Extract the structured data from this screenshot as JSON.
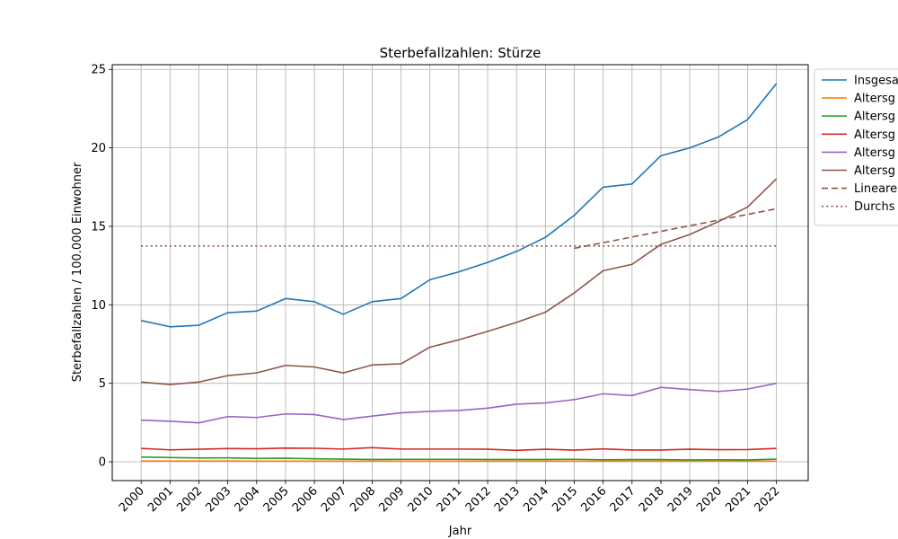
{
  "chart_data": {
    "type": "line",
    "title": "Sterbefallzahlen: Stürze",
    "xlabel": "Jahr",
    "ylabel": "Sterbefallzahlen / 100.000 Einwohner",
    "x": [
      2000,
      2001,
      2002,
      2003,
      2004,
      2005,
      2006,
      2007,
      2008,
      2009,
      2010,
      2011,
      2012,
      2013,
      2014,
      2015,
      2016,
      2017,
      2018,
      2019,
      2020,
      2021,
      2022
    ],
    "xlim": [
      1999.0,
      2023.1
    ],
    "ylim": [
      -1.2,
      25.3
    ],
    "yticks": [
      0,
      5,
      10,
      15,
      20,
      25
    ],
    "grid": true,
    "legend_position": "right-outside-top",
    "series": [
      {
        "name": "Insgesa",
        "color": "#1f77b4",
        "style": "solid",
        "values": [
          9.0,
          8.6,
          8.7,
          9.5,
          9.6,
          10.4,
          10.2,
          9.4,
          10.2,
          10.4,
          11.6,
          12.1,
          12.7,
          13.4,
          14.3,
          15.7,
          17.5,
          17.7,
          19.5,
          20.0,
          20.7,
          21.8,
          24.1
        ]
      },
      {
        "name": "Altersg",
        "color": "#ff7f0e",
        "style": "solid",
        "values": [
          0.05,
          0.05,
          0.05,
          0.05,
          0.04,
          0.04,
          0.04,
          0.04,
          0.04,
          0.04,
          0.04,
          0.04,
          0.04,
          0.04,
          0.04,
          0.04,
          0.04,
          0.04,
          0.04,
          0.04,
          0.04,
          0.04,
          0.04
        ]
      },
      {
        "name": "Altersg",
        "color": "#2ca02c",
        "style": "solid",
        "values": [
          0.3,
          0.27,
          0.24,
          0.25,
          0.21,
          0.23,
          0.19,
          0.17,
          0.15,
          0.16,
          0.16,
          0.16,
          0.15,
          0.15,
          0.15,
          0.16,
          0.13,
          0.14,
          0.14,
          0.12,
          0.13,
          0.12,
          0.17
        ]
      },
      {
        "name": "Altersg",
        "color": "#d62728",
        "style": "solid",
        "values": [
          0.85,
          0.76,
          0.8,
          0.84,
          0.83,
          0.87,
          0.86,
          0.81,
          0.9,
          0.81,
          0.81,
          0.81,
          0.8,
          0.73,
          0.8,
          0.74,
          0.82,
          0.75,
          0.75,
          0.8,
          0.77,
          0.78,
          0.85
        ]
      },
      {
        "name": "Altersg",
        "color": "#9467bd",
        "style": "solid",
        "values": [
          2.65,
          2.58,
          2.48,
          2.88,
          2.82,
          3.05,
          3.01,
          2.69,
          2.91,
          3.12,
          3.21,
          3.27,
          3.42,
          3.67,
          3.75,
          3.96,
          4.33,
          4.22,
          4.74,
          4.6,
          4.48,
          4.63,
          5.0
        ]
      },
      {
        "name": "Altersg",
        "color": "#8c564b",
        "style": "solid",
        "values": [
          5.08,
          4.92,
          5.08,
          5.49,
          5.66,
          6.14,
          6.04,
          5.66,
          6.17,
          6.24,
          7.3,
          7.77,
          8.31,
          8.88,
          9.53,
          10.76,
          12.17,
          12.58,
          13.85,
          14.48,
          15.31,
          16.23,
          18.03
        ]
      },
      {
        "name": "Lineare",
        "color": "#8c564b",
        "style": "dashed",
        "x": [
          2015,
          2022
        ],
        "values": [
          13.6,
          16.12
        ]
      },
      {
        "name": "Durchs",
        "color": "#8c564b",
        "style": "dotted",
        "x": [
          2000,
          2022
        ],
        "values": [
          13.75,
          13.75
        ]
      }
    ]
  }
}
